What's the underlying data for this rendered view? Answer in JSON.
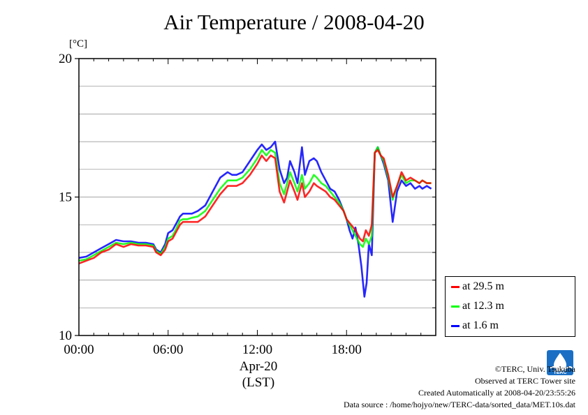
{
  "chart_data": {
    "type": "line",
    "title": "Air Temperature / 2008-04-20",
    "y_unit_label": "[°C]",
    "ylim": [
      10,
      20
    ],
    "yticks": [
      10,
      15,
      20
    ],
    "y_minor_step": 1,
    "xlim": [
      0,
      24
    ],
    "xticks": [
      0,
      6,
      12,
      18
    ],
    "xtick_labels": [
      "00:00",
      "06:00",
      "12:00",
      "18:00"
    ],
    "x_date_label": "Apr-20",
    "x_timezone_label": "(LST)",
    "grid": true,
    "legend_position": "bottom-right",
    "series": [
      {
        "name": "at 29.5 m",
        "color": "#ff0000",
        "x": [
          0,
          0.5,
          1,
          1.5,
          2,
          2.5,
          3,
          3.5,
          4,
          4.5,
          5,
          5.2,
          5.5,
          5.8,
          6,
          6.3,
          6.5,
          6.8,
          7,
          7.3,
          7.6,
          8,
          8.5,
          9,
          9.5,
          10,
          10.3,
          10.6,
          11,
          11.5,
          12,
          12.3,
          12.6,
          12.9,
          13.2,
          13.5,
          13.8,
          14,
          14.2,
          14.5,
          14.7,
          15,
          15.2,
          15.5,
          15.8,
          16,
          16.3,
          16.6,
          16.9,
          17.2,
          17.5,
          17.8,
          18,
          18.3,
          18.6,
          18.9,
          19.1,
          19.3,
          19.5,
          19.7,
          19.9,
          20.1,
          20.3,
          20.5,
          20.8,
          21.1,
          21.4,
          21.7,
          22,
          22.3,
          22.6,
          22.9,
          23.1,
          23.4,
          23.7
        ],
        "y": [
          12.6,
          12.7,
          12.8,
          13.0,
          13.1,
          13.3,
          13.2,
          13.3,
          13.25,
          13.25,
          13.2,
          13.0,
          12.9,
          13.1,
          13.4,
          13.5,
          13.7,
          14.0,
          14.1,
          14.1,
          14.1,
          14.1,
          14.3,
          14.7,
          15.1,
          15.4,
          15.4,
          15.4,
          15.5,
          15.8,
          16.2,
          16.5,
          16.3,
          16.5,
          16.4,
          15.2,
          14.8,
          15.2,
          15.6,
          15.2,
          14.9,
          15.5,
          15.0,
          15.2,
          15.5,
          15.4,
          15.3,
          15.2,
          15.0,
          14.9,
          14.7,
          14.5,
          14.2,
          14.0,
          13.8,
          13.5,
          13.4,
          13.8,
          13.6,
          14.0,
          16.6,
          16.7,
          16.5,
          16.4,
          15.8,
          15.0,
          15.4,
          15.9,
          15.6,
          15.7,
          15.6,
          15.5,
          15.6,
          15.5,
          15.5
        ]
      },
      {
        "name": "at 12.3 m",
        "color": "#00ff00",
        "x": [
          0,
          0.5,
          1,
          1.5,
          2,
          2.5,
          3,
          3.5,
          4,
          4.5,
          5,
          5.2,
          5.5,
          5.8,
          6,
          6.3,
          6.5,
          6.8,
          7,
          7.3,
          7.6,
          8,
          8.5,
          9,
          9.5,
          10,
          10.3,
          10.6,
          11,
          11.5,
          12,
          12.3,
          12.6,
          12.9,
          13.2,
          13.5,
          13.8,
          14,
          14.2,
          14.5,
          14.7,
          15,
          15.2,
          15.5,
          15.8,
          16,
          16.3,
          16.6,
          16.9,
          17.2,
          17.5,
          17.8,
          18,
          18.3,
          18.6,
          18.9,
          19.1,
          19.3,
          19.5,
          19.7,
          19.9,
          20.1,
          20.3,
          20.5,
          20.8,
          21.1,
          21.4,
          21.7,
          22,
          22.3,
          22.6,
          22.9,
          23.1,
          23.4,
          23.7
        ],
        "y": [
          12.7,
          12.75,
          12.9,
          13.05,
          13.2,
          13.35,
          13.3,
          13.35,
          13.3,
          13.3,
          13.25,
          13.05,
          12.95,
          13.2,
          13.5,
          13.6,
          13.8,
          14.15,
          14.2,
          14.2,
          14.25,
          14.3,
          14.5,
          14.9,
          15.3,
          15.6,
          15.6,
          15.6,
          15.7,
          16.0,
          16.4,
          16.7,
          16.5,
          16.7,
          16.6,
          15.5,
          15.1,
          15.5,
          15.9,
          15.5,
          15.2,
          15.8,
          15.3,
          15.5,
          15.8,
          15.7,
          15.5,
          15.4,
          15.2,
          15.0,
          14.8,
          14.5,
          14.2,
          13.9,
          13.6,
          13.3,
          13.2,
          13.5,
          13.3,
          13.6,
          16.6,
          16.8,
          16.5,
          16.3,
          15.7,
          14.9,
          15.4,
          15.8,
          15.5,
          15.6,
          15.6,
          15.5,
          15.6,
          15.5,
          15.5
        ]
      },
      {
        "name": "at 1.6 m",
        "color": "#0000ff",
        "x": [
          0,
          0.5,
          1,
          1.5,
          2,
          2.5,
          3,
          3.5,
          4,
          4.5,
          5,
          5.2,
          5.5,
          5.8,
          6,
          6.3,
          6.5,
          6.8,
          7,
          7.3,
          7.6,
          8,
          8.5,
          9,
          9.5,
          10,
          10.3,
          10.6,
          11,
          11.5,
          12,
          12.3,
          12.6,
          12.9,
          13.2,
          13.5,
          13.8,
          14,
          14.2,
          14.5,
          14.7,
          15,
          15.2,
          15.5,
          15.8,
          16,
          16.3,
          16.6,
          16.9,
          17.2,
          17.5,
          17.8,
          18,
          18.2,
          18.4,
          18.6,
          18.8,
          19,
          19.2,
          19.35,
          19.5,
          19.7,
          19.9,
          20.1,
          20.3,
          20.5,
          20.8,
          21.1,
          21.4,
          21.7,
          22,
          22.3,
          22.6,
          22.9,
          23.1,
          23.4,
          23.7
        ],
        "y": [
          12.8,
          12.85,
          13.0,
          13.15,
          13.3,
          13.45,
          13.4,
          13.4,
          13.35,
          13.35,
          13.3,
          13.1,
          13.0,
          13.3,
          13.7,
          13.8,
          14.0,
          14.3,
          14.4,
          14.4,
          14.4,
          14.5,
          14.7,
          15.2,
          15.7,
          15.9,
          15.8,
          15.8,
          15.9,
          16.3,
          16.7,
          16.9,
          16.7,
          16.8,
          17.0,
          16.0,
          15.5,
          15.7,
          16.3,
          15.9,
          15.5,
          16.8,
          15.8,
          16.3,
          16.4,
          16.3,
          15.9,
          15.6,
          15.3,
          15.2,
          14.9,
          14.5,
          14.2,
          13.8,
          13.5,
          13.9,
          13.3,
          12.5,
          11.4,
          11.9,
          13.3,
          12.9,
          16.6,
          16.8,
          16.5,
          16.2,
          15.6,
          14.1,
          15.2,
          15.6,
          15.4,
          15.5,
          15.3,
          15.4,
          15.3,
          15.4,
          15.3
        ]
      }
    ]
  },
  "credits": {
    "copyright": "©TERC, Univ. Tsukuba",
    "observed": "Observed at TERC Tower site",
    "created": "Created Automatically at 2008-04-20/23:55:26",
    "source": "Data source : /home/hojyo/new/TERC-data/sorted_data/MET.10s.dat",
    "logo_text": "TERC"
  }
}
